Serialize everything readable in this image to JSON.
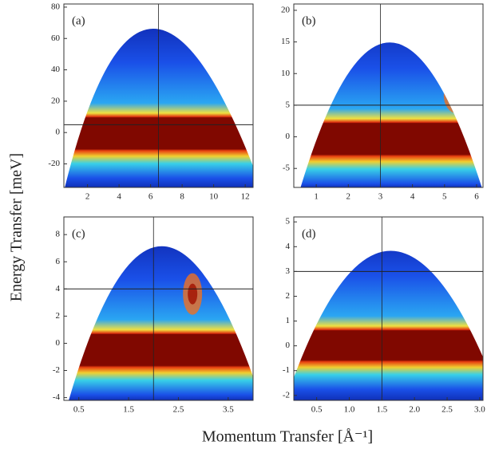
{
  "chart_data": [
    {
      "type": "heatmap",
      "title": "(a)",
      "xlim": [
        0.5,
        12.5
      ],
      "xticks": [
        2,
        4,
        6,
        8,
        10,
        12
      ],
      "ylim": [
        -35,
        82
      ],
      "yticks": [
        -20,
        0,
        20,
        40,
        60,
        80
      ],
      "hline": 5,
      "vline": 6.5
    },
    {
      "type": "heatmap",
      "title": "(b)",
      "xlim": [
        0.3,
        6.2
      ],
      "xticks": [
        1,
        2,
        3,
        4,
        5,
        6
      ],
      "ylim": [
        -8,
        21
      ],
      "yticks": [
        -5,
        0,
        5,
        10,
        15,
        20
      ],
      "hline": 5,
      "vline": 3
    },
    {
      "type": "heatmap",
      "title": "(c)",
      "xlim": [
        0.2,
        4.0
      ],
      "xticks": [
        0.5,
        1.5,
        2.5,
        3.5
      ],
      "ylim": [
        -4.2,
        9.3
      ],
      "yticks": [
        -4,
        -2,
        0,
        2,
        4,
        6,
        8
      ],
      "hline": 4,
      "vline": 2
    },
    {
      "type": "heatmap",
      "title": "(d)",
      "xlim": [
        0.15,
        3.05
      ],
      "xticks": [
        0.5,
        {
          "value": 1.0,
          "label": "1.0"
        },
        1.5,
        {
          "value": 2.0,
          "label": "2.0"
        },
        2.5,
        {
          "value": 3.0,
          "label": "3.0"
        }
      ],
      "ylim": [
        -2.2,
        5.2
      ],
      "yticks": [
        -2,
        -1,
        0,
        1,
        2,
        3,
        4,
        5
      ],
      "hline": 3,
      "vline": 1.5
    }
  ],
  "ylabel": "Energy Transfer [meV]",
  "xlabel": "Momentum Transfer [Å⁻¹]"
}
